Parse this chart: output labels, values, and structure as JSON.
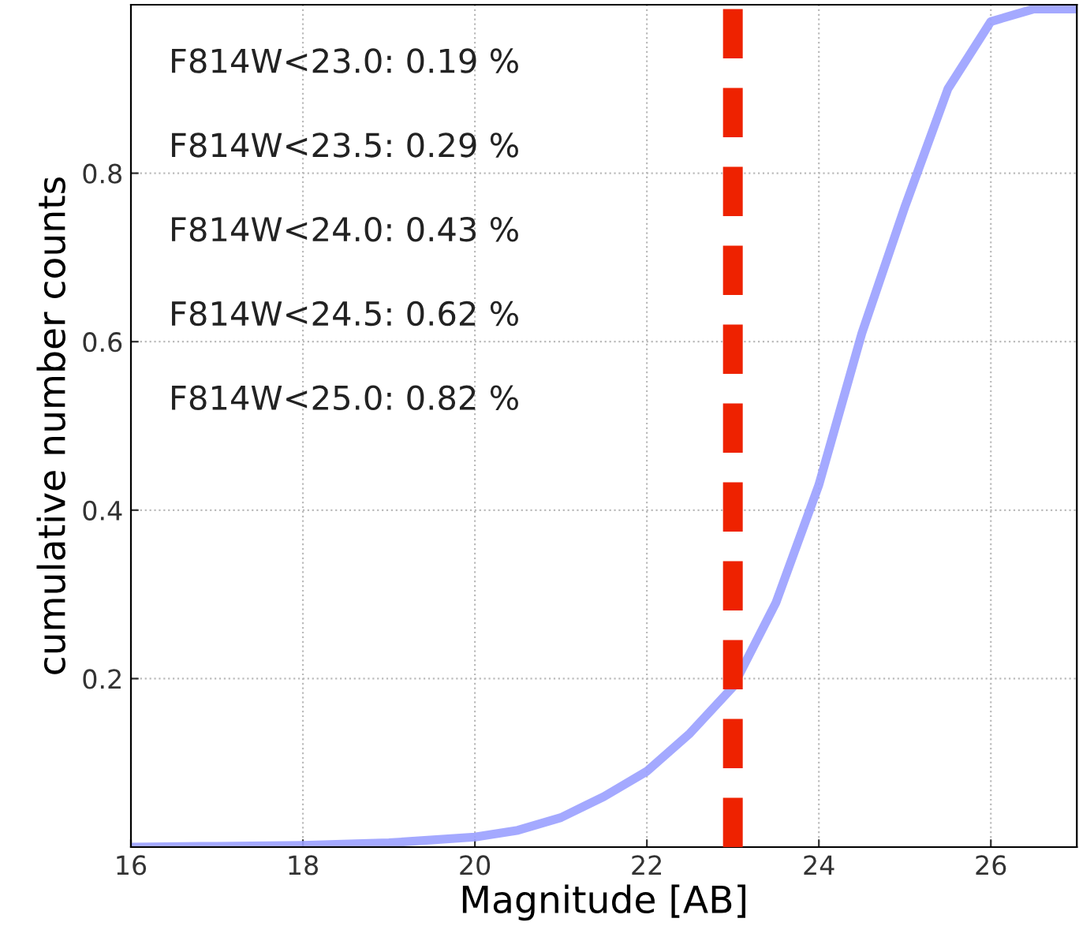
{
  "chart_data": {
    "type": "line",
    "xlabel": "Magnitude [AB]",
    "ylabel": "cumulative number counts",
    "x": [
      16,
      17,
      18,
      19,
      20,
      20.5,
      21,
      21.5,
      22,
      22.5,
      23,
      23.5,
      24,
      24.5,
      25,
      25.5,
      26,
      26.5,
      27
    ],
    "series": [
      {
        "color": "#9aa0ff",
        "values": [
          0.0,
          0.001,
          0.002,
          0.005,
          0.012,
          0.02,
          0.035,
          0.06,
          0.09,
          0.135,
          0.19,
          0.29,
          0.43,
          0.61,
          0.76,
          0.9,
          0.98,
          0.995,
          0.995
        ]
      }
    ],
    "ref_lines": [
      {
        "axis": "x",
        "value": 23,
        "color": "#ee2200",
        "line_style": "dashed"
      }
    ],
    "annotations": [
      "F814W<23.0: 0.19 %",
      "F814W<23.5: 0.29 %",
      "F814W<24.0: 0.43 %",
      "F814W<24.5: 0.62 %",
      "F814W<25.0: 0.82 %"
    ],
    "xlim": [
      16,
      27
    ],
    "ylim": [
      0,
      1
    ],
    "xticks": [
      16,
      18,
      20,
      22,
      24,
      26
    ],
    "yticks": [
      0.2,
      0.4,
      0.6,
      0.8
    ],
    "grid": true,
    "line_style": "solid",
    "marker": "none"
  }
}
